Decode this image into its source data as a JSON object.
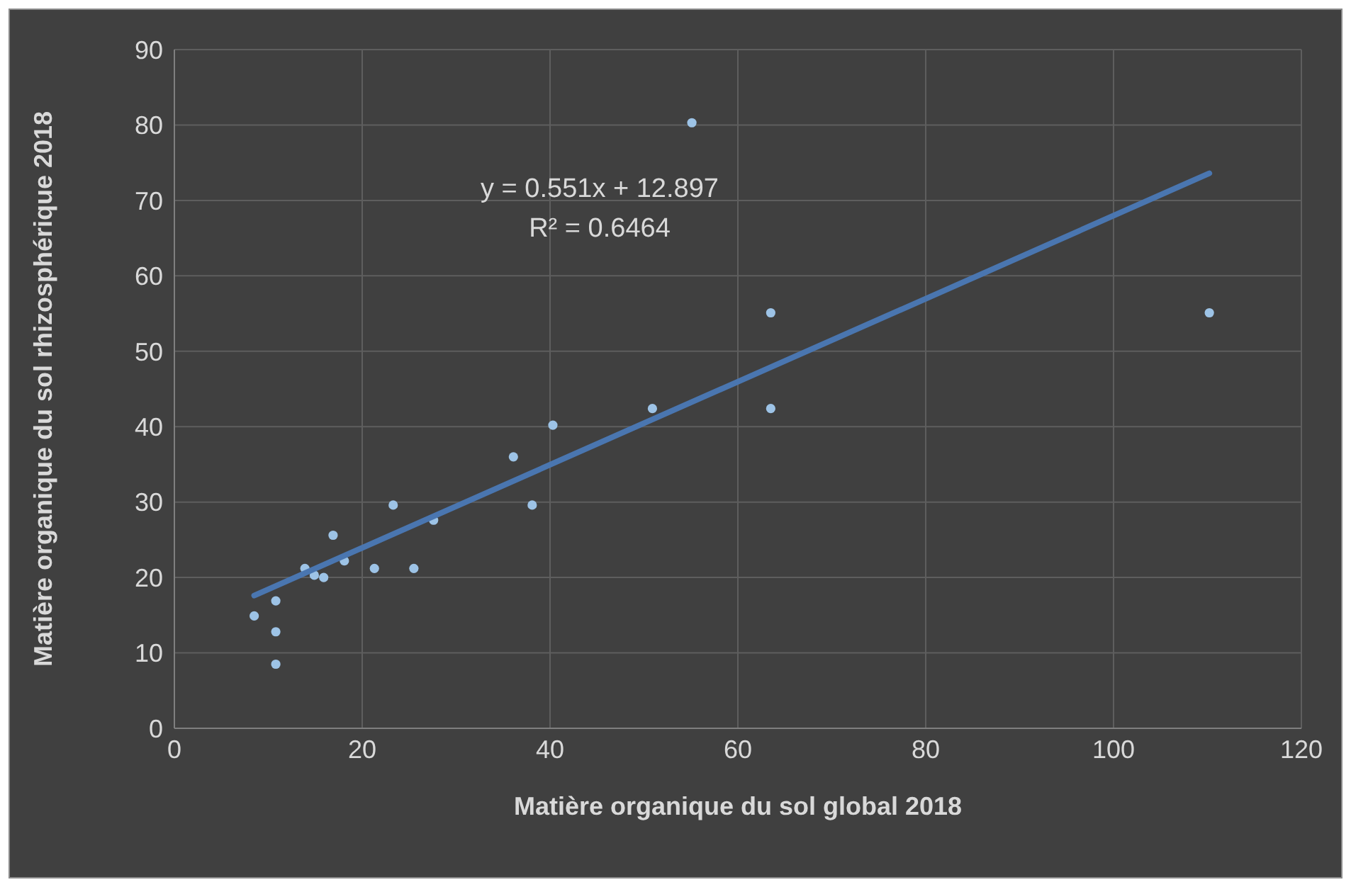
{
  "chart_data": {
    "type": "scatter",
    "xlabel": "Matière organique du sol global 2018",
    "ylabel": "Matière organique du sol rhizosphérique 2018",
    "annotations": [
      "y = 0.551x + 12.897",
      "R² = 0.6464"
    ],
    "xlim": [
      0,
      120
    ],
    "xticks": [
      0,
      20,
      40,
      60,
      80,
      100,
      120
    ],
    "ylim": [
      0,
      90
    ],
    "yticks": [
      0,
      10,
      20,
      30,
      40,
      50,
      60,
      70,
      80,
      90
    ],
    "grid": true,
    "marker": "circle",
    "series": [
      {
        "color": "#9dc3e6",
        "x": [
          8.5,
          10.8,
          10.8,
          10.8,
          13.9,
          14.9,
          15.9,
          16.9,
          18.1,
          21.3,
          23.3,
          25.5,
          27.6,
          36.1,
          38.1,
          40.3,
          50.9,
          55.1,
          63.5,
          63.5,
          110.2
        ],
        "values": [
          14.9,
          16.9,
          12.8,
          8.5,
          21.2,
          20.3,
          20.0,
          25.6,
          22.2,
          21.2,
          29.6,
          21.2,
          27.6,
          36.0,
          29.6,
          40.2,
          42.4,
          80.3,
          55.1,
          42.4,
          55.1
        ]
      },
      {
        "type": "line",
        "color": "#4a76b0",
        "x": [
          8.5,
          110.2
        ],
        "values": [
          17.6,
          73.6
        ],
        "marker": "none",
        "line_style": "solid"
      }
    ]
  }
}
